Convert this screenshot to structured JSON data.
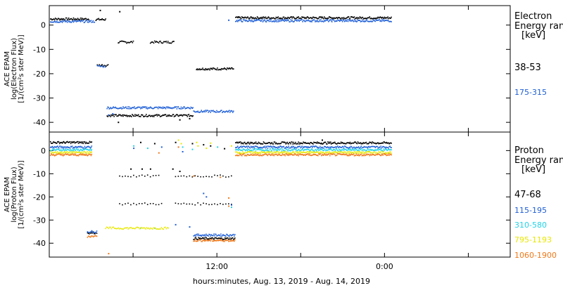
{
  "colors": {
    "axis": "#000000",
    "black": "#000000",
    "blue": "#1f5fd6",
    "cyan": "#22d3e6",
    "yellow": "#e8e800",
    "orange": "#f07818"
  },
  "chart_data": [
    {
      "type": "scatter",
      "ylabel_lines": [
        "ACE EPAM",
        "log(Electron Flux)",
        "[1/(cm²s ster MeV)]"
      ],
      "ylim": [
        -44,
        8
      ],
      "yticks": [
        0,
        -10,
        -20,
        -30,
        -40
      ],
      "legend": {
        "title_lines": [
          "Electron",
          "Energy range"
        ],
        "unit": "[keV]"
      },
      "series": [
        {
          "name": "38-53",
          "color": "#000000",
          "segments": [
            {
              "x": [
                0.05,
                2.8
              ],
              "y": 2.5,
              "step": 0.05
            },
            {
              "x": [
                3.3,
                4.0
              ],
              "y": 2.3,
              "step": 0.05
            },
            {
              "x": [
                4.9,
                6.0
              ],
              "y": -7.0,
              "step": 0.06
            },
            {
              "x": [
                7.2,
                8.9
              ],
              "y": -7.0,
              "step": 0.06
            },
            {
              "x": [
                10.5,
                13.2
              ],
              "y": -18.0,
              "step": 0.05
            },
            {
              "x": [
                13.3,
                24.5
              ],
              "y": 3.0,
              "step": 0.05
            },
            {
              "x": [
                3.4,
                4.2
              ],
              "y": -16.5,
              "step": 0.07
            },
            {
              "x": [
                4.1,
                10.3
              ],
              "y": -37.2,
              "step": 0.05
            }
          ],
          "points": [
            [
              3.6,
              6.0
            ],
            [
              5.0,
              5.5
            ],
            [
              4.9,
              -40.0
            ],
            [
              9.3,
              -39.0
            ],
            [
              10.0,
              -38.5
            ]
          ]
        },
        {
          "name": "175-315",
          "color": "#1f5fd6",
          "segments": [
            {
              "x": [
                0.05,
                3.2
              ],
              "y": 1.5,
              "step": 0.05
            },
            {
              "x": [
                3.4,
                4.0
              ],
              "y": -17.0,
              "step": 0.07
            },
            {
              "x": [
                4.1,
                10.3
              ],
              "y": -34.0,
              "step": 0.05
            },
            {
              "x": [
                10.3,
                13.2
              ],
              "y": -35.5,
              "step": 0.05
            },
            {
              "x": [
                13.3,
                24.5
              ],
              "y": 1.8,
              "step": 0.05
            }
          ],
          "points": [
            [
              12.8,
              2.0
            ],
            [
              4.2,
              -37.0
            ],
            [
              4.5,
              -36.5
            ]
          ]
        }
      ]
    },
    {
      "type": "scatter",
      "ylabel_lines": [
        "ACE EPAM",
        "log(Proton Flux)",
        "[1/(cm²s ster MeV)]"
      ],
      "ylim": [
        -46,
        8
      ],
      "yticks": [
        0,
        -10,
        -20,
        -30,
        -40
      ],
      "legend": {
        "title_lines": [
          "Proton",
          "Energy range"
        ],
        "unit": "[keV]"
      },
      "series": [
        {
          "name": "47-68",
          "color": "#000000",
          "segments": [
            {
              "x": [
                0.05,
                3.0
              ],
              "y": 3.5,
              "step": 0.05
            },
            {
              "x": [
                13.3,
                24.5
              ],
              "y": 3.3,
              "step": 0.05
            },
            {
              "x": [
                5.0,
                8.0
              ],
              "y": -11.0,
              "step": 0.2
            },
            {
              "x": [
                9.0,
                13.0
              ],
              "y": -11.0,
              "step": 0.2
            },
            {
              "x": [
                5.0,
                8.2
              ],
              "y": -23.0,
              "step": 0.2
            },
            {
              "x": [
                9.0,
                13.0
              ],
              "y": -23.0,
              "step": 0.2
            },
            {
              "x": [
                2.7,
                3.4
              ],
              "y": -35.5,
              "step": 0.06
            },
            {
              "x": [
                10.3,
                13.3
              ],
              "y": -38.0,
              "step": 0.05
            }
          ],
          "points": [
            [
              6.5,
              3.5
            ],
            [
              7.5,
              3.0
            ],
            [
              9.0,
              3.5
            ],
            [
              10.2,
              3.0
            ],
            [
              11.0,
              2.5
            ],
            [
              11.5,
              2.0
            ],
            [
              5.8,
              -8.0
            ],
            [
              6.6,
              -8.0
            ],
            [
              7.2,
              -8.0
            ],
            [
              8.8,
              -8.0
            ],
            [
              9.3,
              -9.0
            ],
            [
              12.5,
              0.8
            ],
            [
              19.5,
              4.5
            ]
          ]
        },
        {
          "name": "115-195",
          "color": "#1f5fd6",
          "segments": [
            {
              "x": [
                0.05,
                3.0
              ],
              "y": 1.5,
              "step": 0.05
            },
            {
              "x": [
                13.3,
                24.5
              ],
              "y": 1.5,
              "step": 0.05
            },
            {
              "x": [
                2.7,
                3.4
              ],
              "y": -35.0,
              "step": 0.06
            },
            {
              "x": [
                10.3,
                13.3
              ],
              "y": -36.5,
              "step": 0.05
            }
          ],
          "points": [
            [
              11.0,
              -18.5
            ],
            [
              11.2,
              -20.0
            ],
            [
              9.0,
              -32.0
            ],
            [
              10.0,
              -33.0
            ],
            [
              13.0,
              -23.5
            ],
            [
              6.0,
              1.0
            ],
            [
              8.0,
              1.5
            ],
            [
              9.5,
              -0.5
            ]
          ]
        },
        {
          "name": "310-580",
          "color": "#22d3e6",
          "segments": [
            {
              "x": [
                0.05,
                3.0
              ],
              "y": 0.3,
              "step": 0.05
            },
            {
              "x": [
                13.3,
                24.5
              ],
              "y": 0.3,
              "step": 0.05
            }
          ],
          "points": [
            [
              6.0,
              2.0
            ],
            [
              7.0,
              1.0
            ],
            [
              9.5,
              1.5
            ],
            [
              10.2,
              0.5
            ],
            [
              12.0,
              1.5
            ],
            [
              13.0,
              -24.5
            ],
            [
              6.5,
              -33.5
            ],
            [
              7.5,
              -33.5
            ]
          ]
        },
        {
          "name": "795-1193",
          "color": "#e8e800",
          "segments": [
            {
              "x": [
                0.05,
                3.0
              ],
              "y": -0.8,
              "step": 0.05
            },
            {
              "x": [
                13.3,
                24.5
              ],
              "y": -0.8,
              "step": 0.05
            },
            {
              "x": [
                4.0,
                8.5
              ],
              "y": -33.5,
              "step": 0.07
            }
          ],
          "points": [
            [
              9.2,
              4.5
            ],
            [
              9.4,
              3.0
            ],
            [
              10.5,
              3.5
            ],
            [
              10.6,
              2.0
            ],
            [
              11.5,
              3.2
            ],
            [
              11.2,
              1.0
            ],
            [
              13.0,
              2.0
            ]
          ]
        },
        {
          "name": "1060-1900",
          "color": "#f07818",
          "segments": [
            {
              "x": [
                0.05,
                3.0
              ],
              "y": -1.8,
              "step": 0.05
            },
            {
              "x": [
                13.3,
                24.5
              ],
              "y": -1.8,
              "step": 0.05
            },
            {
              "x": [
                2.7,
                3.4
              ],
              "y": -37.0,
              "step": 0.06
            },
            {
              "x": [
                10.3,
                13.3
              ],
              "y": -38.8,
              "step": 0.05
            }
          ],
          "points": [
            [
              4.2,
              -44.5
            ],
            [
              9.2,
              1.5
            ],
            [
              10.3,
              -11.0
            ],
            [
              12.2,
              -11.5
            ],
            [
              12.8,
              -20.5
            ],
            [
              7.8,
              -1.0
            ],
            [
              12.8,
              -24.0
            ]
          ]
        }
      ]
    }
  ],
  "x_axis": {
    "range_hours": [
      0,
      33
    ],
    "tick_hours": [
      6,
      12,
      18,
      24,
      30
    ],
    "labels": [
      {
        "hour": 12,
        "text": "12:00"
      },
      {
        "hour": 24,
        "text": "0:00"
      }
    ],
    "title": "hours:minutes, Aug. 13, 2019 - Aug. 14, 2019"
  }
}
